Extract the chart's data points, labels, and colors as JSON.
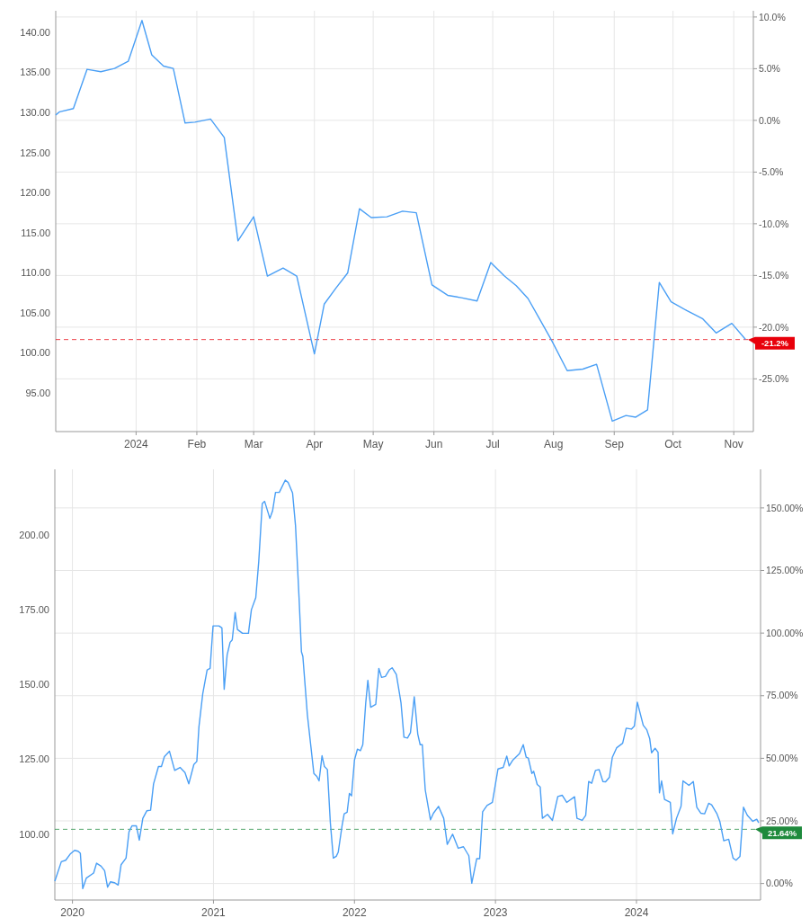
{
  "chart_data": [
    {
      "type": "line",
      "grid": true,
      "line_style": "solid",
      "x": [
        "2023-11-21",
        "2023-11-23",
        "2023-11-30",
        "2023-12-07",
        "2023-12-14",
        "2023-12-21",
        "2023-12-28",
        "2024-01-04",
        "2024-01-09",
        "2024-01-15",
        "2024-01-20",
        "2024-01-26",
        "2024-01-31",
        "2024-02-08",
        "2024-02-15",
        "2024-02-22",
        "2024-03-01",
        "2024-03-08",
        "2024-03-16",
        "2024-03-23",
        "2024-04-01",
        "2024-04-06",
        "2024-04-12",
        "2024-04-18",
        "2024-04-24",
        "2024-04-30",
        "2024-05-08",
        "2024-05-16",
        "2024-05-23",
        "2024-05-31",
        "2024-06-08",
        "2024-06-15",
        "2024-06-23",
        "2024-06-30",
        "2024-07-07",
        "2024-07-13",
        "2024-07-19",
        "2024-07-25",
        "2024-07-31",
        "2024-08-08",
        "2024-08-16",
        "2024-08-23",
        "2024-08-31",
        "2024-09-07",
        "2024-09-12",
        "2024-09-18",
        "2024-09-24",
        "2024-09-30",
        "2024-10-08",
        "2024-10-16",
        "2024-10-23",
        "2024-10-31",
        "2024-11-07"
      ],
      "series": [
        {
          "color": "#4a9ff5",
          "values": [
            129.7,
            130.1,
            130.5,
            135.4,
            135.1,
            135.5,
            136.4,
            141.5,
            137.2,
            135.8,
            135.5,
            128.7,
            128.8,
            129.2,
            126.9,
            114.0,
            117.0,
            109.6,
            110.6,
            109.6,
            99.9,
            106.1,
            108.1,
            110.0,
            118.0,
            116.9,
            117.0,
            117.7,
            117.5,
            108.5,
            107.2,
            106.9,
            106.5,
            111.3,
            109.6,
            108.4,
            106.8,
            104.2,
            101.6,
            97.8,
            98.0,
            98.6,
            91.5,
            92.2,
            92.0,
            92.9,
            108.8,
            106.4,
            105.3,
            104.3,
            102.5,
            103.7,
            101.7
          ]
        }
      ],
      "xlim": [
        "2023-11-21",
        "2024-11-11"
      ],
      "xticks": [
        {
          "value": "2024-01-01",
          "label": "2024"
        },
        {
          "value": "2024-02-01",
          "label": "Feb"
        },
        {
          "value": "2024-03-01",
          "label": "Mar"
        },
        {
          "value": "2024-04-01",
          "label": "Apr"
        },
        {
          "value": "2024-05-01",
          "label": "May"
        },
        {
          "value": "2024-06-01",
          "label": "Jun"
        },
        {
          "value": "2024-07-01",
          "label": "Jul"
        },
        {
          "value": "2024-08-01",
          "label": "Aug"
        },
        {
          "value": "2024-09-01",
          "label": "Sep"
        },
        {
          "value": "2024-10-01",
          "label": "Oct"
        },
        {
          "value": "2024-11-01",
          "label": "Nov"
        }
      ],
      "ylim": [
        90.2,
        142.7
      ],
      "yticks": [
        {
          "value": 95,
          "label": "95.00"
        },
        {
          "value": 100,
          "label": "100.00"
        },
        {
          "value": 105,
          "label": "105.00"
        },
        {
          "value": 110,
          "label": "110.00"
        },
        {
          "value": 115,
          "label": "115.00"
        },
        {
          "value": 120,
          "label": "120.00"
        },
        {
          "value": 125,
          "label": "125.00"
        },
        {
          "value": 130,
          "label": "130.00"
        },
        {
          "value": 135,
          "label": "135.00"
        },
        {
          "value": 140,
          "label": "140.00"
        }
      ],
      "y2lim": [
        -30.1,
        10.6
      ],
      "y2ticks": [
        {
          "value": -25,
          "label": "-25.0%"
        },
        {
          "value": -20,
          "label": "-20.0%"
        },
        {
          "value": -15,
          "label": "-15.0%"
        },
        {
          "value": -10,
          "label": "-10.0%"
        },
        {
          "value": -5,
          "label": "-5.0%"
        },
        {
          "value": 0,
          "label": "0.0%"
        },
        {
          "value": 5,
          "label": "5.0%"
        },
        {
          "value": 10,
          "label": "10.0%"
        }
      ],
      "ref_lines": [
        {
          "axis": "y2",
          "value": -21.2,
          "label": "-21.2%",
          "color": "#e8000b",
          "line_style": "dashed"
        }
      ]
    },
    {
      "type": "line",
      "grid": true,
      "line_style": "solid",
      "x": [
        2019.875,
        2019.921,
        2019.952,
        2019.983,
        2020.015,
        2020.04,
        2020.056,
        2020.073,
        2020.098,
        2020.15,
        2020.171,
        2020.203,
        2020.228,
        2020.249,
        2020.27,
        2020.297,
        2020.324,
        2020.345,
        2020.38,
        2020.401,
        2020.422,
        2020.453,
        2020.474,
        2020.499,
        2020.527,
        2020.554,
        2020.575,
        2020.61,
        2020.631,
        2020.652,
        2020.688,
        2020.725,
        2020.763,
        2020.798,
        2020.825,
        2020.861,
        2020.882,
        2020.897,
        2020.924,
        2020.955,
        2020.976,
        2020.997,
        2021.039,
        2021.06,
        2021.076,
        2021.097,
        2021.118,
        2021.133,
        2021.154,
        2021.17,
        2021.206,
        2021.248,
        2021.269,
        2021.3,
        2021.321,
        2021.346,
        2021.363,
        2021.4,
        2021.419,
        2021.44,
        2021.467,
        2021.509,
        2021.53,
        2021.561,
        2021.582,
        2021.607,
        2021.624,
        2021.634,
        2021.666,
        2021.712,
        2021.733,
        2021.749,
        2021.77,
        2021.787,
        2021.808,
        2021.829,
        2021.85,
        2021.871,
        2021.885,
        2021.912,
        2021.927,
        2021.948,
        2021.964,
        2021.979,
        2022.0,
        2022.021,
        2022.042,
        2022.059,
        2022.08,
        2022.095,
        2022.115,
        2022.151,
        2022.173,
        2022.192,
        2022.219,
        2022.247,
        2022.267,
        2022.297,
        2022.33,
        2022.351,
        2022.376,
        2022.397,
        2022.424,
        2022.449,
        2022.466,
        2022.481,
        2022.502,
        2022.539,
        2022.56,
        2022.596,
        2022.633,
        2022.658,
        2022.696,
        2022.736,
        2022.773,
        2022.811,
        2022.832,
        2022.867,
        2022.888,
        2022.909,
        2022.94,
        2022.978,
        2023.018,
        2023.055,
        2023.08,
        2023.097,
        2023.124,
        2023.17,
        2023.197,
        2023.218,
        2023.233,
        2023.258,
        2023.271,
        2023.296,
        2023.317,
        2023.333,
        2023.369,
        2023.404,
        2023.442,
        2023.473,
        2023.505,
        2023.561,
        2023.578,
        2023.615,
        2023.64,
        2023.661,
        2023.682,
        2023.709,
        2023.735,
        2023.762,
        2023.781,
        2023.808,
        2023.829,
        2023.86,
        2023.902,
        2023.927,
        2023.964,
        2023.985,
        2024.006,
        2024.048,
        2024.073,
        2024.094,
        2024.107,
        2024.132,
        2024.153,
        2024.163,
        2024.178,
        2024.199,
        2024.24,
        2024.257,
        2024.284,
        2024.316,
        2024.33,
        2024.372,
        2024.403,
        2024.428,
        2024.456,
        2024.483,
        2024.512,
        2024.533,
        2024.571,
        2024.591,
        2024.619,
        2024.654,
        2024.685,
        2024.706,
        2024.734,
        2024.759,
        2024.786,
        2024.825,
        2024.853,
        2024.867
      ],
      "series": [
        {
          "color": "#4a9ff5",
          "values": [
            84.3,
            90.8,
            91.3,
            93.3,
            94.6,
            94.3,
            93.6,
            81.8,
            85.3,
            87.0,
            90.3,
            89.3,
            87.8,
            82.3,
            84.1,
            83.8,
            83.0,
            89.8,
            92.0,
            100.8,
            102.8,
            102.8,
            98.0,
            105.3,
            107.8,
            108.0,
            116.8,
            122.6,
            122.6,
            125.9,
            127.7,
            121.3,
            122.3,
            120.6,
            116.8,
            123.3,
            124.3,
            135.9,
            146.9,
            154.9,
            155.4,
            169.6,
            169.6,
            168.9,
            148.4,
            159.9,
            164.1,
            164.9,
            174.1,
            168.4,
            167.1,
            167.1,
            175.0,
            179.0,
            191.0,
            210.5,
            211.2,
            205.5,
            208.0,
            214.2,
            214.2,
            218.3,
            217.5,
            214.0,
            203.0,
            179.0,
            160.9,
            159.4,
            139.9,
            120.3,
            119.3,
            117.8,
            126.2,
            122.6,
            121.6,
            103.8,
            92.0,
            92.6,
            94.0,
            102.8,
            106.8,
            107.3,
            113.6,
            112.8,
            124.8,
            128.4,
            127.9,
            129.9,
            143.9,
            151.4,
            142.4,
            143.4,
            155.4,
            152.4,
            152.7,
            154.9,
            155.6,
            153.4,
            143.9,
            132.4,
            132.1,
            133.9,
            145.9,
            133.4,
            129.9,
            129.9,
            114.8,
            104.8,
            107.0,
            109.3,
            105.3,
            96.6,
            100.0,
            95.3,
            95.8,
            92.8,
            83.6,
            91.8,
            91.8,
            107.5,
            109.6,
            110.6,
            121.8,
            122.3,
            126.1,
            122.8,
            124.8,
            126.9,
            129.9,
            125.7,
            125.4,
            120.3,
            121.0,
            116.6,
            115.8,
            105.3,
            106.6,
            104.6,
            112.6,
            113.0,
            110.6,
            112.5,
            105.3,
            104.6,
            106.3,
            117.6,
            117.0,
            121.3,
            121.6,
            117.6,
            117.5,
            119.0,
            125.7,
            128.9,
            130.4,
            135.4,
            135.1,
            136.1,
            144.1,
            136.4,
            134.9,
            131.9,
            127.2,
            128.7,
            127.4,
            113.8,
            117.8,
            111.6,
            110.6,
            100.1,
            105.3,
            109.3,
            117.8,
            116.3,
            117.6,
            109.0,
            107.0,
            106.8,
            110.3,
            109.8,
            106.8,
            104.3,
            97.8,
            98.3,
            92.0,
            91.3,
            92.6,
            109.0,
            106.3,
            104.3,
            105.0,
            103.8
          ]
        }
      ],
      "xlim": [
        2019.875,
        2024.88
      ],
      "xticks": [
        2020,
        2021,
        2022,
        2023,
        2024
      ],
      "ylim": [
        78.0,
        221.9
      ],
      "yticks": [
        {
          "value": 100,
          "label": "100.00"
        },
        {
          "value": 125,
          "label": "125.00"
        },
        {
          "value": 150,
          "label": "150.00"
        },
        {
          "value": 175,
          "label": "175.00"
        },
        {
          "value": 200,
          "label": "200.00"
        }
      ],
      "y2lim": [
        -6.6,
        165.4
      ],
      "y2ticks": [
        {
          "value": 0,
          "label": "0.00%"
        },
        {
          "value": 25,
          "label": "25.00%"
        },
        {
          "value": 50,
          "label": "50.00%"
        },
        {
          "value": 75,
          "label": "75.00%"
        },
        {
          "value": 100,
          "label": "100.00%"
        },
        {
          "value": 125,
          "label": "125.00%"
        },
        {
          "value": 150,
          "label": "150.00%"
        }
      ],
      "ref_lines": [
        {
          "axis": "y2",
          "value": 21.64,
          "label": "21.64%",
          "color": "#1e8a3c",
          "line_style": "dashed"
        }
      ]
    }
  ]
}
